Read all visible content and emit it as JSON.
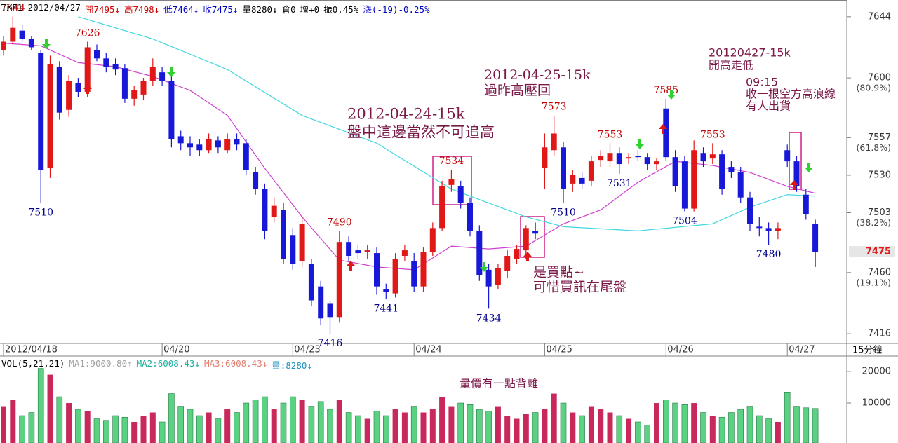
{
  "header": [
    {
      "text": "TXF1 2012/04/27",
      "color": "#000000"
    },
    {
      "text": "開7495↓",
      "color": "#d00000"
    },
    {
      "text": "高7498↓",
      "color": "#d00000"
    },
    {
      "text": "低7464↓",
      "color": "#0000c0"
    },
    {
      "text": "收7475↓",
      "color": "#0000c0"
    },
    {
      "text": "量8280↓",
      "color": "#000000"
    },
    {
      "text": "倉0",
      "color": "#000000"
    },
    {
      "text": "增+0",
      "color": "#000000"
    },
    {
      "text": "振0.45%",
      "color": "#000000"
    },
    {
      "text": "漲(-19)-0.25%",
      "color": "#0000c0"
    }
  ],
  "volume_header": [
    {
      "text": "VOL(5,21,21)",
      "color": "#000000"
    },
    {
      "text": "MA1:9000.80↑",
      "color": "#a0a0a0"
    },
    {
      "text": "MA2:6008.43↓",
      "color": "#20b0a0"
    },
    {
      "text": "MA3:6008.43↓",
      "color": "#e08070"
    },
    {
      "text": "量:8280↓",
      "color": "#2090c0"
    }
  ],
  "chart_data": {
    "type": "candlestick",
    "categories": [
      "2012/04/18",
      null,
      null,
      null,
      null,
      null,
      null,
      null,
      null,
      null,
      null,
      null,
      null,
      null,
      null,
      null,
      null,
      "04/20",
      null,
      null,
      null,
      null,
      null,
      null,
      null,
      null,
      null,
      null,
      null,
      null,
      null,
      "04/23",
      null,
      null,
      null,
      null,
      null,
      null,
      null,
      null,
      null,
      null,
      null,
      null,
      "04/24",
      null,
      null,
      null,
      null,
      null,
      null,
      null,
      null,
      null,
      null,
      null,
      null,
      null,
      "04/25",
      null,
      null,
      null,
      null,
      null,
      null,
      null,
      null,
      null,
      null,
      null,
      null,
      "04/26",
      null,
      null,
      null,
      null,
      null,
      null,
      null,
      null,
      null,
      null,
      null,
      null,
      "04/27",
      null,
      null,
      null
    ],
    "open": [
      7620,
      7626,
      7634,
      7628,
      7618,
      7535,
      7608,
      7577,
      7596,
      7590,
      7620,
      7614,
      7610,
      7607,
      7585,
      7588,
      7598,
      7604,
      7598,
      7558,
      7553,
      7552,
      7548,
      7555,
      7548,
      7556,
      7553,
      7532,
      7520,
      7500,
      7505,
      7487,
      7468,
      7466,
      7450,
      7438,
      7428,
      7482,
      7476,
      7475,
      7474,
      7448,
      7445,
      7472,
      7468,
      7450,
      7475,
      7492,
      7523,
      7522,
      7510,
      7490,
      7462,
      7451,
      7461,
      7470,
      7476,
      7490,
      7535,
      7548,
      7550,
      7524,
      7528,
      7526,
      7541,
      7540,
      7546,
      7542,
      7544,
      7543,
      7538,
      7578,
      7543,
      7540,
      7506,
      7546,
      7542,
      7545,
      7536,
      7532,
      7514,
      7493,
      7492,
      7490,
      7548,
      7540,
      7516,
      7495
    ],
    "high": [
      7630,
      7644,
      7638,
      7630,
      7620,
      7616,
      7612,
      7602,
      7600,
      7626,
      7624,
      7618,
      7614,
      7610,
      7594,
      7600,
      7614,
      7608,
      7602,
      7562,
      7558,
      7556,
      7560,
      7558,
      7560,
      7560,
      7556,
      7536,
      7524,
      7514,
      7510,
      7492,
      7500,
      7470,
      7454,
      7440,
      7490,
      7486,
      7480,
      7480,
      7478,
      7452,
      7474,
      7480,
      7474,
      7478,
      7496,
      7526,
      7534,
      7526,
      7514,
      7494,
      7466,
      7466,
      7476,
      7480,
      7494,
      7496,
      7560,
      7573,
      7554,
      7534,
      7532,
      7544,
      7548,
      7553,
      7550,
      7546,
      7548,
      7546,
      7542,
      7585,
      7548,
      7544,
      7555,
      7550,
      7553,
      7548,
      7540,
      7536,
      7518,
      7500,
      7496,
      7496,
      7552,
      7544,
      7520,
      7498
    ],
    "low": [
      7616,
      7624,
      7626,
      7620,
      7510,
      7528,
      7570,
      7572,
      7586,
      7586,
      7612,
      7604,
      7602,
      7582,
      7580,
      7584,
      7594,
      7594,
      7550,
      7548,
      7544,
      7544,
      7546,
      7546,
      7546,
      7548,
      7530,
      7516,
      7484,
      7496,
      7466,
      7462,
      7464,
      7436,
      7422,
      7416,
      7424,
      7468,
      7470,
      7470,
      7444,
      7441,
      7442,
      7468,
      7446,
      7446,
      7472,
      7490,
      7518,
      7506,
      7486,
      7454,
      7434,
      7448,
      7456,
      7466,
      7470,
      7484,
      7520,
      7544,
      7510,
      7518,
      7520,
      7522,
      7536,
      7536,
      7531,
      7538,
      7540,
      7534,
      7534,
      7540,
      7518,
      7504,
      7504,
      7536,
      7538,
      7516,
      7528,
      7510,
      7490,
      7486,
      7480,
      7484,
      7536,
      7518,
      7498,
      7464
    ],
    "close": [
      7626,
      7636,
      7628,
      7622,
      7534,
      7610,
      7575,
      7598,
      7590,
      7622,
      7614,
      7608,
      7606,
      7585,
      7591,
      7598,
      7608,
      7598,
      7556,
      7553,
      7550,
      7548,
      7556,
      7550,
      7556,
      7552,
      7534,
      7520,
      7490,
      7508,
      7470,
      7466,
      7495,
      7440,
      7427,
      7428,
      7482,
      7472,
      7474,
      7476,
      7450,
      7446,
      7470,
      7476,
      7450,
      7475,
      7492,
      7522,
      7527,
      7510,
      7490,
      7458,
      7450,
      7463,
      7472,
      7477,
      7492,
      7488,
      7550,
      7560,
      7520,
      7530,
      7524,
      7540,
      7544,
      7546,
      7538,
      7543,
      7543,
      7538,
      7540,
      7543,
      7522,
      7506,
      7548,
      7540,
      7545,
      7520,
      7532,
      7514,
      7495,
      7492,
      7490,
      7492,
      7540,
      7522,
      7502,
      7475
    ],
    "volume": [
      9000,
      11000,
      6000,
      7000,
      21000,
      19000,
      12000,
      10000,
      8000,
      7500,
      5000,
      4500,
      6000,
      5500,
      4000,
      6000,
      7000,
      4000,
      13000,
      9000,
      8000,
      6000,
      7000,
      5000,
      8000,
      7000,
      10000,
      11000,
      12000,
      8000,
      10000,
      12000,
      11000,
      9000,
      10500,
      8000,
      11000,
      7000,
      6000,
      5000,
      7500,
      6000,
      8000,
      7000,
      9000,
      7000,
      8000,
      12000,
      9000,
      10000,
      9500,
      8000,
      7500,
      9000,
      6000,
      5000,
      6500,
      7000,
      8000,
      13000,
      10000,
      7000,
      6000,
      9000,
      8000,
      7000,
      6000,
      5000,
      4000,
      3000,
      10000,
      11000,
      10000,
      9500,
      10000,
      7000,
      6000,
      5500,
      7000,
      8000,
      9000,
      6000,
      5000,
      4000,
      13500,
      9000,
      8500,
      8280
    ],
    "up_color": "#e01818",
    "down_color": "#1818d8",
    "volume_up_color": "#c8285a",
    "volume_down_color": "#5ad282",
    "ma": [
      {
        "color": "#40d8e0",
        "x": [
          8,
          16,
          24,
          32,
          40,
          48,
          56,
          60,
          68,
          76,
          80,
          84,
          87
        ],
        "values": [
          7644,
          7628,
          7606,
          7573,
          7553,
          7520,
          7500,
          7493,
          7490,
          7495,
          7507,
          7516,
          7515
        ]
      },
      {
        "color": "#d040d0",
        "x": [
          0,
          4,
          8,
          12,
          16,
          20,
          24,
          28,
          32,
          36,
          40,
          44,
          48,
          52,
          56,
          60,
          64,
          68,
          72,
          76,
          80,
          84,
          87
        ],
        "values": [
          7625,
          7623,
          7611,
          7608,
          7601,
          7591,
          7573,
          7535,
          7500,
          7469,
          7464,
          7462,
          7479,
          7477,
          7479,
          7495,
          7505,
          7525,
          7540,
          7537,
          7532,
          7522,
          7517
        ]
      }
    ],
    "ylim": [
      7409,
      7656
    ],
    "yticks": [
      7416,
      7460,
      7503,
      7530,
      7557,
      7600,
      7644
    ],
    "fib_ticks": [
      {
        "value": 7460,
        "label": "(19.1%)"
      },
      {
        "value": 7503,
        "label": "(38.2%)"
      },
      {
        "value": 7557,
        "label": "(61.8%)"
      },
      {
        "value": 7600,
        "label": "(80.9%)"
      }
    ],
    "last": 7475,
    "interval": "15分鐘",
    "volume_ylim": [
      0,
      23800
    ],
    "volume_yticks": [
      10000,
      20000
    ],
    "high_labels": [
      {
        "x": 1,
        "value": 7644
      },
      {
        "x": 9,
        "value": 7626
      },
      {
        "x": 36,
        "value": 7490
      },
      {
        "x": 48,
        "value": 7534
      },
      {
        "x": 59,
        "value": 7573
      },
      {
        "x": 65,
        "value": 7553
      },
      {
        "x": 71,
        "value": 7585
      },
      {
        "x": 76,
        "value": 7553
      }
    ],
    "low_labels": [
      {
        "x": 4,
        "value": 7510
      },
      {
        "x": 35,
        "value": 7416
      },
      {
        "x": 41,
        "value": 7441
      },
      {
        "x": 52,
        "value": 7434
      },
      {
        "x": 60,
        "value": 7510
      },
      {
        "x": 66,
        "value": 7531
      },
      {
        "x": 73,
        "value": 7504
      },
      {
        "x": 82,
        "value": 7480
      }
    ],
    "annotations": [
      {
        "lines": [
          "2012-04-24-15k",
          "盤中這邊當然不可追高"
        ]
      },
      {
        "lines": [
          "2012-04-25-15k",
          "過昨高壓回"
        ]
      },
      {
        "lines": [
          "20120427-15k",
          "開高走低"
        ]
      },
      {
        "lines": [
          "09:15",
          "收一根空方高浪線",
          "有人出貨"
        ]
      },
      {
        "lines": [
          "是買點~",
          "可惜買訊在尾盤"
        ]
      },
      {
        "lines": [
          "量價有一點背離"
        ]
      }
    ]
  }
}
